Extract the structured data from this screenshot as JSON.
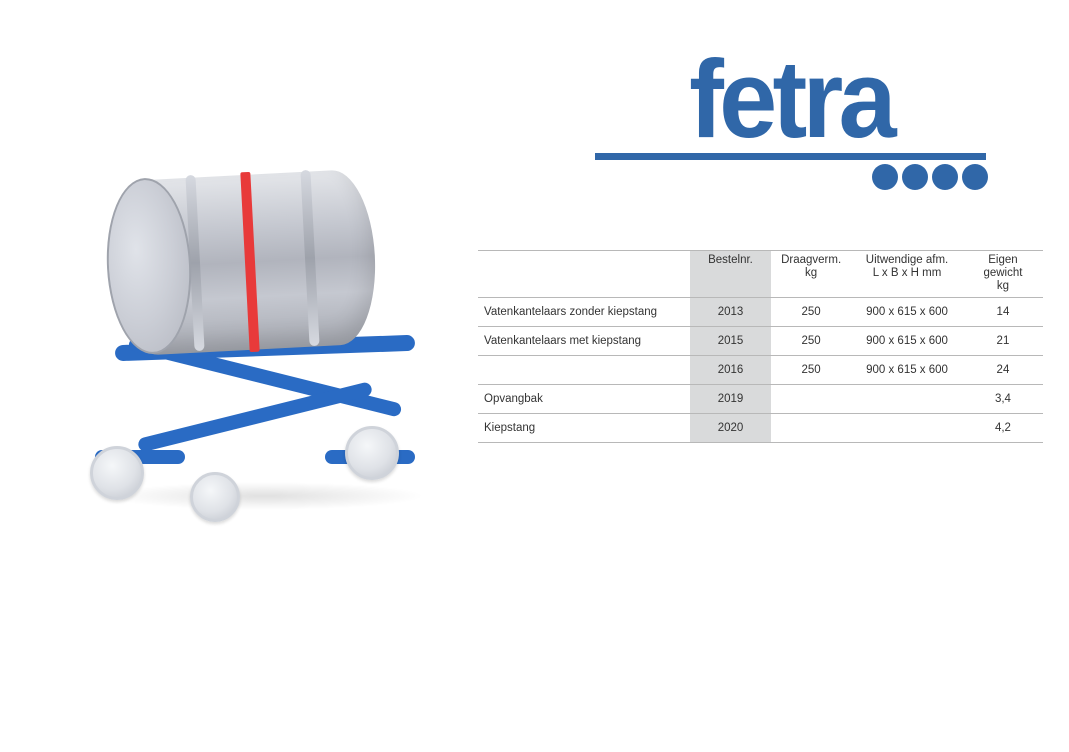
{
  "logo": {
    "text": "fetra",
    "color": "#3067a8"
  },
  "table": {
    "headers": {
      "desc": "",
      "bestelnr": "Bestelnr.",
      "draagverm_l1": "Draagverm.",
      "draagverm_l2": "kg",
      "afm_l1": "Uitwendige afm.",
      "afm_l2": "L x B x H mm",
      "gewicht_l1": "Eigen gewicht",
      "gewicht_l2": "kg"
    },
    "rows": [
      {
        "desc": "Vatenkantelaars zonder kiepstang",
        "bestelnr": "2013",
        "draag": "250",
        "afm": "900 x 615 x 600",
        "gew": "14"
      },
      {
        "desc": "Vatenkantelaars met kiepstang",
        "bestelnr": "2015",
        "draag": "250",
        "afm": "900 x 615 x 600",
        "gew": "21"
      },
      {
        "desc": "",
        "bestelnr": "2016",
        "draag": "250",
        "afm": "900 x 615 x 600",
        "gew": "24"
      },
      {
        "desc": "Opvangbak",
        "bestelnr": "2019",
        "draag": "",
        "afm": "",
        "gew": "3,4"
      },
      {
        "desc": "Kiepstang",
        "bestelnr": "2020",
        "draag": "",
        "afm": "",
        "gew": "4,2"
      }
    ],
    "colors": {
      "border": "#b8b8b8",
      "shaded_col": "#d9dadb",
      "text": "#333333"
    },
    "font_size_pt": 9
  },
  "product_illustration": {
    "type": "illustration",
    "barrel_color": "#c5c8d0",
    "strap_color": "#e83a3a",
    "frame_color": "#2a6bc4",
    "wheel_color": "#dfe2e7"
  }
}
